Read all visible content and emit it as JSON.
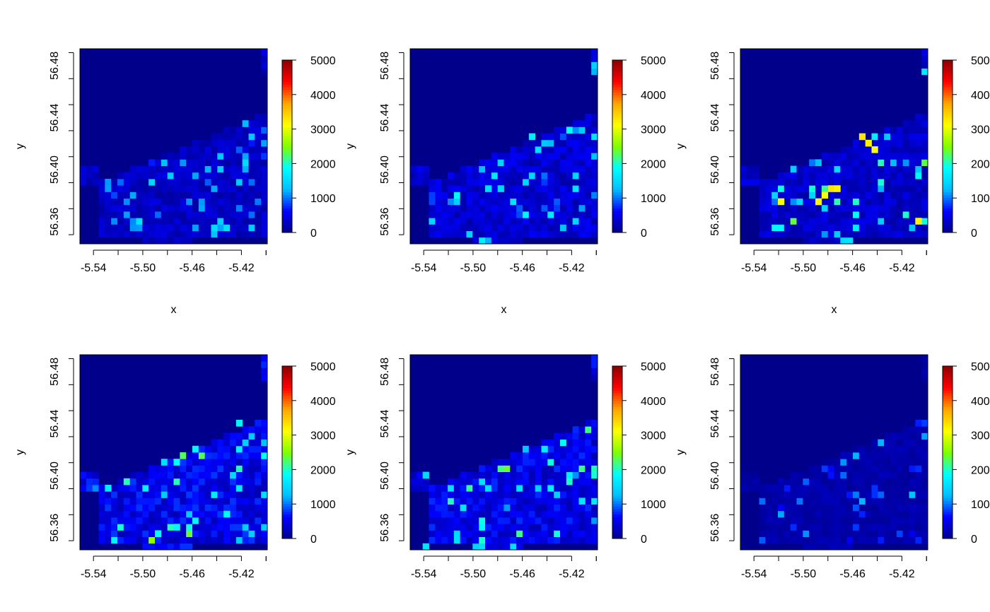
{
  "chart_data": {
    "type": "heatmap",
    "layout": {
      "rows": 2,
      "cols": 3
    },
    "x_ticks": [
      -5.54,
      -5.5,
      -5.46,
      -5.42
    ],
    "x_tick_labels": [
      "-5.54",
      "-5.50",
      "-5.46",
      "-5.42"
    ],
    "y_ticks": [
      56.36,
      56.4,
      56.44,
      56.48
    ],
    "y_tick_labels": [
      "56.36",
      "56.40",
      "56.44",
      "56.48"
    ],
    "xlim": [
      -5.551,
      -5.399
    ],
    "ylim": [
      56.343,
      56.493
    ],
    "grid": {
      "cols": 30,
      "rows": 30
    },
    "xlabel": "x",
    "ylabel": "y",
    "colorbar": {
      "min": 0,
      "max": 5000,
      "ticks": [
        0,
        1000,
        2000,
        3000,
        4000,
        5000
      ],
      "tick_labels": [
        "0",
        "1000",
        "2000",
        "3000",
        "4000",
        "5000"
      ],
      "colors": [
        "#00008B",
        "#0000FF",
        "#00BFFF",
        "#00FFFF",
        "#7FFF00",
        "#FFFF00",
        "#FFA500",
        "#FF0000",
        "#8B0000"
      ]
    },
    "panels": [
      {
        "id": "panel-1",
        "level": 380,
        "noise": 420,
        "hot": []
      },
      {
        "id": "panel-2",
        "level": 480,
        "noise": 520,
        "hot": [
          {
            "x": -5.45,
            "y": 56.425,
            "v": 1700
          },
          {
            "x": -5.49,
            "y": 56.385,
            "v": 1550
          },
          {
            "x": -5.48,
            "y": 56.387,
            "v": 1500
          }
        ]
      },
      {
        "id": "panel-3",
        "level": 420,
        "noise": 700,
        "hot": [
          {
            "x": -5.45,
            "y": 56.425,
            "v": 3300
          },
          {
            "x": -5.449,
            "y": 56.421,
            "v": 3200
          },
          {
            "x": -5.44,
            "y": 56.414,
            "v": 3100
          },
          {
            "x": -5.478,
            "y": 56.388,
            "v": 3300
          },
          {
            "x": -5.474,
            "y": 56.388,
            "v": 3200
          },
          {
            "x": -5.482,
            "y": 56.381,
            "v": 3100
          },
          {
            "x": -5.488,
            "y": 56.376,
            "v": 3200
          },
          {
            "x": -5.518,
            "y": 56.376,
            "v": 3100
          },
          {
            "x": -5.406,
            "y": 56.361,
            "v": 3200
          }
        ]
      },
      {
        "id": "panel-4",
        "level": 650,
        "noise": 650,
        "hot": [
          {
            "x": -5.49,
            "y": 56.355,
            "v": 1900
          },
          {
            "x": -5.475,
            "y": 56.36,
            "v": 1800
          },
          {
            "x": -5.43,
            "y": 56.37,
            "v": 1850
          },
          {
            "x": -5.42,
            "y": 56.44,
            "v": 1800
          },
          {
            "x": -5.53,
            "y": 56.392,
            "v": 1700
          }
        ]
      },
      {
        "id": "panel-5",
        "level": 620,
        "noise": 600,
        "hot": [
          {
            "x": -5.44,
            "y": 56.42,
            "v": 1700
          },
          {
            "x": -5.41,
            "y": 56.38,
            "v": 1650
          },
          {
            "x": -5.54,
            "y": 56.345,
            "v": 1600
          }
        ]
      },
      {
        "id": "panel-6",
        "level": 210,
        "noise": 380,
        "hot": []
      }
    ]
  }
}
